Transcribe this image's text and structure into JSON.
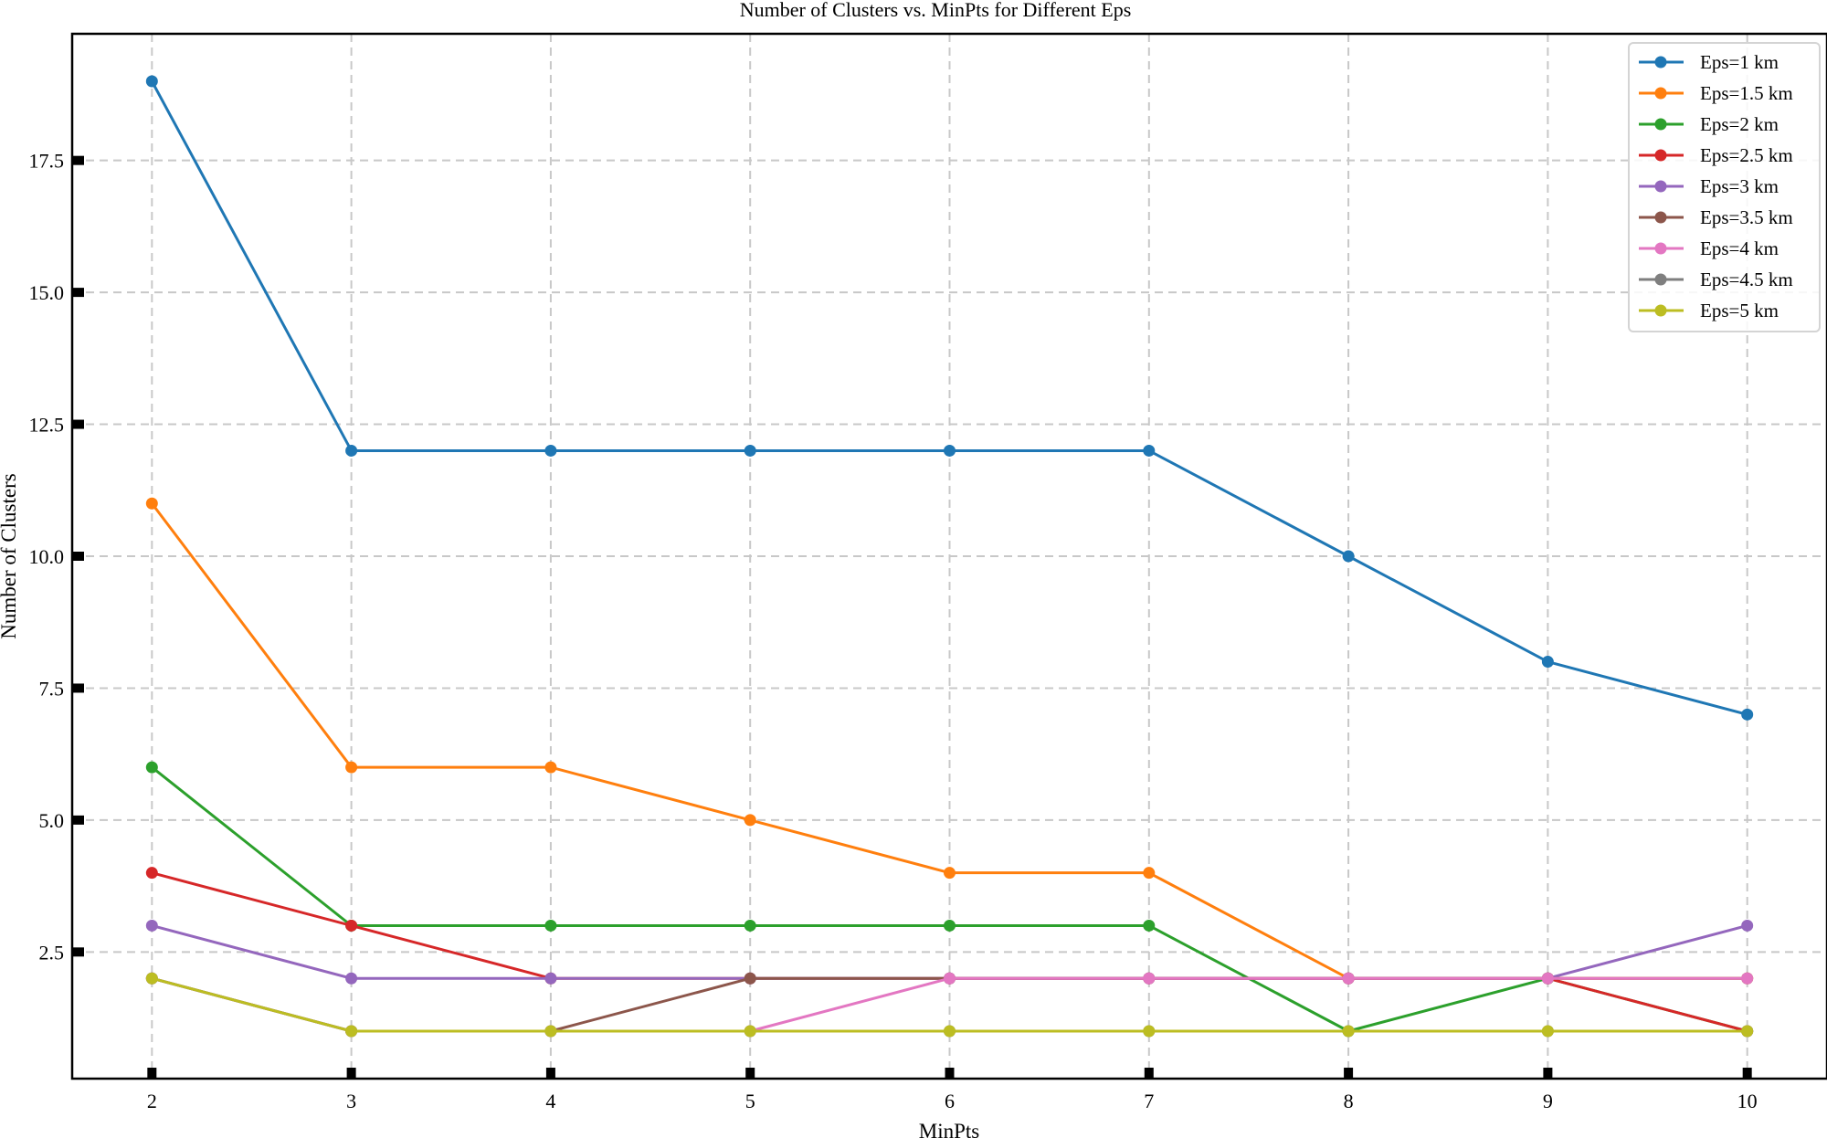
{
  "chart_data": {
    "type": "line",
    "title": "Number of Clusters vs. MinPts for Different Eps",
    "xlabel": "MinPts",
    "ylabel": "Number of Clusters",
    "x": [
      2,
      3,
      4,
      5,
      6,
      7,
      8,
      9,
      10
    ],
    "xlim": [
      1.6,
      10.4
    ],
    "ylim": [
      0.1,
      19.9
    ],
    "x_ticks": [
      "2",
      "3",
      "4",
      "5",
      "6",
      "7",
      "8",
      "9",
      "10"
    ],
    "y_ticks": [
      "2.5",
      "5.0",
      "7.5",
      "10.0",
      "12.5",
      "15.0",
      "17.5"
    ],
    "y_tick_values": [
      2.5,
      5.0,
      7.5,
      10.0,
      12.5,
      15.0,
      17.5
    ],
    "grid": true,
    "legend_position": "top-right",
    "series": [
      {
        "name": "Eps=1 km",
        "color": "#1f77b4",
        "values": [
          19,
          12,
          12,
          12,
          12,
          12,
          10,
          8,
          7
        ]
      },
      {
        "name": "Eps=1.5 km",
        "color": "#ff7f0e",
        "values": [
          11,
          6,
          6,
          5,
          4,
          4,
          2,
          2,
          2
        ]
      },
      {
        "name": "Eps=2 km",
        "color": "#2ca02c",
        "values": [
          6,
          3,
          3,
          3,
          3,
          3,
          1,
          2,
          1
        ]
      },
      {
        "name": "Eps=2.5 km",
        "color": "#d62728",
        "values": [
          4,
          3,
          2,
          2,
          2,
          2,
          2,
          2,
          1
        ]
      },
      {
        "name": "Eps=3 km",
        "color": "#9467bd",
        "values": [
          3,
          2,
          2,
          2,
          2,
          2,
          2,
          2,
          3
        ]
      },
      {
        "name": "Eps=3.5 km",
        "color": "#8c564b",
        "values": [
          2,
          1,
          1,
          2,
          2,
          2,
          2,
          2,
          2
        ]
      },
      {
        "name": "Eps=4 km",
        "color": "#e377c2",
        "values": [
          2,
          1,
          1,
          1,
          2,
          2,
          2,
          2,
          2
        ]
      },
      {
        "name": "Eps=4.5 km",
        "color": "#7f7f7f",
        "values": [
          2,
          1,
          1,
          1,
          1,
          1,
          1,
          1,
          1
        ]
      },
      {
        "name": "Eps=5 km",
        "color": "#bcbd22",
        "values": [
          2,
          1,
          1,
          1,
          1,
          1,
          1,
          1,
          1
        ]
      }
    ]
  }
}
